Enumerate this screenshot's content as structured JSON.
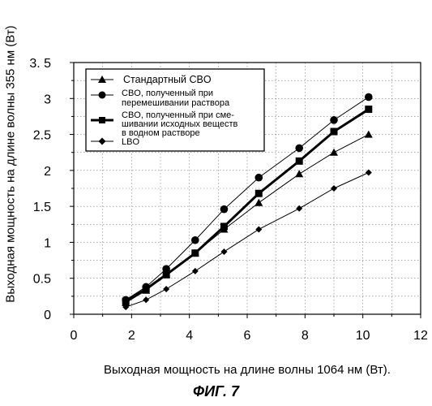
{
  "chart_data": {
    "type": "line",
    "title": "",
    "xlabel": "Выходная мощность на длине волны 1064 нм (Вт).",
    "ylabel": "Выходная мощность на длине волны 355 нм (Вт)",
    "xlim": [
      0,
      12
    ],
    "ylim": [
      0,
      3.5
    ],
    "x_ticks": [
      "0",
      "2",
      "4",
      "6",
      "8",
      "10",
      "12"
    ],
    "y_ticks": [
      "0",
      "0.5",
      "1",
      "1.5",
      "2",
      "2.5",
      "3",
      "3. 5"
    ],
    "grid": true,
    "legend_position": "top-left",
    "series": [
      {
        "name": "Стандартный CBO",
        "marker": "triangle",
        "points": [
          [
            1.8,
            0.16
          ],
          [
            2.5,
            0.33
          ],
          [
            3.2,
            0.55
          ],
          [
            4.2,
            0.85
          ],
          [
            5.2,
            1.18
          ],
          [
            6.4,
            1.55
          ],
          [
            7.8,
            1.95
          ],
          [
            9.0,
            2.25
          ],
          [
            10.2,
            2.5
          ]
        ]
      },
      {
        "name": "CBO, полученный при перемешивании раствора",
        "marker": "circle",
        "points": [
          [
            1.8,
            0.2
          ],
          [
            2.5,
            0.38
          ],
          [
            3.2,
            0.63
          ],
          [
            4.2,
            1.03
          ],
          [
            5.2,
            1.46
          ],
          [
            6.4,
            1.9
          ],
          [
            7.8,
            2.31
          ],
          [
            9.0,
            2.7
          ],
          [
            10.2,
            3.02
          ]
        ]
      },
      {
        "name": "CBO, полученный при смешивании исходных веществ в водном растворе",
        "marker": "square",
        "points": [
          [
            1.8,
            0.18
          ],
          [
            2.5,
            0.35
          ],
          [
            3.2,
            0.55
          ],
          [
            4.2,
            0.85
          ],
          [
            5.2,
            1.22
          ],
          [
            6.4,
            1.68
          ],
          [
            7.8,
            2.13
          ],
          [
            9.0,
            2.54
          ],
          [
            10.2,
            2.85
          ]
        ]
      },
      {
        "name": "LBO",
        "marker": "diamond",
        "points": [
          [
            1.8,
            0.1
          ],
          [
            2.5,
            0.2
          ],
          [
            3.2,
            0.35
          ],
          [
            4.2,
            0.6
          ],
          [
            5.2,
            0.87
          ],
          [
            6.4,
            1.18
          ],
          [
            7.8,
            1.47
          ],
          [
            9.0,
            1.75
          ],
          [
            10.2,
            1.97
          ]
        ]
      }
    ]
  },
  "legend": {
    "items": [
      "Стандартный CBO",
      "CBO, полученный при",
      "перемешивании раствора",
      "CBO, полученный при сме-",
      "шивании исходных веществ",
      "в водном растворе",
      "LBO"
    ]
  },
  "caption": "ФИГ. 7"
}
